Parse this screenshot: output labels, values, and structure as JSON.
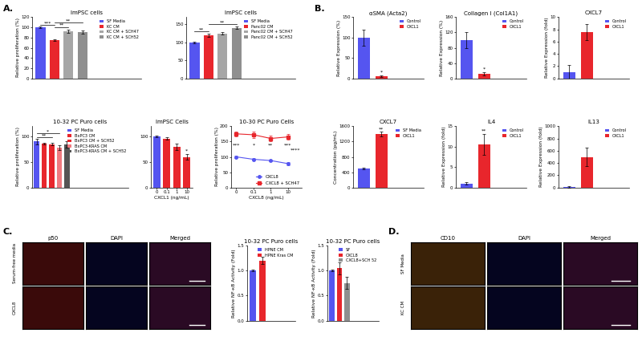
{
  "panel_labels": [
    "A.",
    "B.",
    "C.",
    "D."
  ],
  "chart_data": [
    {
      "type": "bar",
      "title": "ImPSC cells",
      "ylabel": "Relative proliferation (%)",
      "categories": [
        "SF Media",
        "KC CM",
        "KC CM + SCH47",
        "KC CM + SCH52"
      ],
      "values": [
        100,
        75,
        92,
        90
      ],
      "errors": [
        2,
        1,
        3,
        3
      ],
      "colors": [
        "#5555f0",
        "#e8262c",
        "#a6a6a6",
        "#8f8f8f"
      ],
      "ylim": [
        0,
        120
      ],
      "yticks": [
        0,
        20,
        40,
        60,
        80,
        100,
        120
      ],
      "legend": "upper right",
      "tick_labels": "y",
      "annotations": [
        {
          "text": "***",
          "x": 0,
          "x2": 1,
          "y": 104
        },
        {
          "text": "**",
          "x": 1,
          "x2": 2,
          "y": 100
        },
        {
          "text": "**",
          "x": 1,
          "x2": 3,
          "y": 109
        }
      ]
    },
    {
      "type": "bar",
      "title": "ImPSC cells",
      "categories": [
        "SF Media",
        "Panc02 CM",
        "Panc02 CM + SCH47",
        "Panc02 CM + SCH52"
      ],
      "values": [
        100,
        120,
        125,
        140
      ],
      "errors": [
        2,
        4,
        3,
        3
      ],
      "colors": [
        "#5555f0",
        "#e8262c",
        "#a6a6a6",
        "#8f8f8f"
      ],
      "ylim": [
        0,
        170
      ],
      "yticks": [
        0,
        50,
        100,
        150
      ],
      "legend": "upper right",
      "tick_labels": "y",
      "annotations": [
        {
          "text": "**",
          "x": 0,
          "x2": 1,
          "y": 130
        },
        {
          "text": "**",
          "x": 1,
          "x2": 3,
          "y": 150
        }
      ]
    },
    {
      "type": "bar",
      "title": "10-32 PC Puro cells",
      "ylabel": "Relative proliferation (%)",
      "categories": [
        "SF Media",
        "BxPC3 CM",
        "BxPC3 CM + SCH52",
        "BxPC3-KRAS CM",
        "BxPC3-KRAS CM + SCH52"
      ],
      "values": [
        90,
        86,
        85,
        78,
        84
      ],
      "errors": [
        5,
        2,
        2,
        4,
        6
      ],
      "colors": [
        "#5555f0",
        "#e8262c",
        "#e8262c",
        "#f07a80",
        "#555555"
      ],
      "ylim": [
        0,
        120
      ],
      "yticks": [
        0,
        50,
        100
      ],
      "legend": "upper right",
      "tick_labels": "y",
      "annotations": [
        {
          "text": "**",
          "x": 0,
          "x2": 2,
          "y": 98
        },
        {
          "text": "*",
          "x": 0,
          "x2": 3,
          "y": 106
        }
      ]
    },
    {
      "type": "bar",
      "title": "ImPSC Cells",
      "xlabel": "CXCL1 (ng/mL)",
      "categories": [
        "0",
        "0.1",
        "1",
        "10"
      ],
      "values": [
        100,
        96,
        80,
        60
      ],
      "errors": [
        2,
        2,
        6,
        5
      ],
      "colors": [
        "#5555f0",
        "#e8262c",
        "#e8262c",
        "#e8262c"
      ],
      "ylim": [
        0,
        120
      ],
      "yticks": [
        0,
        50,
        100
      ],
      "annotations": [
        {
          "text": "*",
          "x": 3,
          "y": 67
        }
      ]
    },
    {
      "type": "line",
      "title": "10-30 PC Puro Cells",
      "xlabel": "CXCL8 (ng/mL)",
      "ylabel": "Relative proliferation (%)",
      "categories": [
        "0",
        "0.1",
        "1",
        "10"
      ],
      "series": [
        {
          "name": "CXCL8",
          "color": "#5555f0",
          "marker": "o",
          "values": [
            100,
            92,
            88,
            78
          ],
          "errors": [
            3,
            3,
            3,
            5
          ]
        },
        {
          "name": "CXCL8 + SCH47",
          "color": "#e8262c",
          "marker": "s",
          "values": [
            175,
            172,
            160,
            165
          ],
          "errors": [
            8,
            10,
            8,
            10
          ]
        }
      ],
      "ylim": [
        0,
        200
      ],
      "yticks": [
        0,
        50,
        100,
        150,
        200
      ],
      "legend": "lower right",
      "annotations": [
        {
          "text": "***",
          "x": 0,
          "y": 130
        },
        {
          "text": "*",
          "x": 1,
          "y": 130
        },
        {
          "text": "**",
          "x": 2,
          "y": 130
        },
        {
          "text": "***",
          "x": 3,
          "y": 130
        },
        {
          "text": "****",
          "x": 3.45,
          "y": 115
        }
      ]
    },
    {
      "type": "bar",
      "title": "αSMA (Acta2)",
      "ylabel": "Relative Expression (%)",
      "categories": [
        "Control",
        "CXCL1"
      ],
      "values": [
        100,
        5
      ],
      "errors": [
        20,
        2
      ],
      "colors": [
        "#5555f0",
        "#e8262c"
      ],
      "ylim": [
        0,
        150
      ],
      "yticks": [
        0,
        50,
        100,
        150
      ],
      "legend": "upper right",
      "tick_labels": "y",
      "annotations": [
        {
          "text": "*",
          "x": 1,
          "y": 10
        }
      ]
    },
    {
      "type": "bar",
      "title": "Collagen I (Col1A1)",
      "ylabel": "Relative Expression (%)",
      "categories": [
        "Control",
        "CXCL1"
      ],
      "values": [
        100,
        12
      ],
      "errors": [
        20,
        4
      ],
      "colors": [
        "#5555f0",
        "#e8262c"
      ],
      "ylim": [
        0,
        160
      ],
      "yticks": [
        0,
        40,
        80,
        120,
        160
      ],
      "legend": "upper right",
      "tick_labels": "y",
      "annotations": [
        {
          "text": "*",
          "x": 1,
          "y": 20
        }
      ]
    },
    {
      "type": "bar",
      "title": "CXCL7",
      "ylabel": "Relative Expression (fold)",
      "categories": [
        "Control",
        "CXCL1"
      ],
      "values": [
        1,
        7.5
      ],
      "errors": [
        1.2,
        1.3
      ],
      "colors": [
        "#5555f0",
        "#e8262c"
      ],
      "ylim": [
        0,
        10
      ],
      "yticks": [
        0,
        2,
        4,
        6,
        8,
        10
      ],
      "legend": "upper right",
      "tick_labels": "y"
    },
    {
      "type": "bar",
      "title": "CXCL7",
      "ylabel": "Concentration (pg/mL)",
      "categories": [
        "SF Media",
        "CXCL1"
      ],
      "values": [
        500,
        1400
      ],
      "errors": [
        20,
        60
      ],
      "colors": [
        "#5555f0",
        "#e8262c"
      ],
      "ylim": [
        0,
        1600
      ],
      "yticks": [
        0,
        400,
        800,
        1200,
        1600
      ],
      "legend": "upper right",
      "tick_labels": "y",
      "annotations": [
        {
          "text": "**",
          "x": 1,
          "y": 1470
        }
      ]
    },
    {
      "type": "bar",
      "title": "IL4",
      "ylabel": "Relative Expression (fold)",
      "categories": [
        "Control",
        "CXCL1"
      ],
      "values": [
        1,
        10.5
      ],
      "errors": [
        0.3,
        2.5
      ],
      "colors": [
        "#5555f0",
        "#e8262c"
      ],
      "ylim": [
        0,
        15
      ],
      "yticks": [
        0,
        5,
        10,
        15
      ],
      "legend": "upper right",
      "tick_labels": "y",
      "annotations": [
        {
          "text": "**",
          "x": 1,
          "y": 13.3
        }
      ]
    },
    {
      "type": "bar",
      "title": "IL13",
      "ylabel": "Relative Expression (fold)",
      "categories": [
        "Control",
        "CXCL1"
      ],
      "values": [
        10,
        500
      ],
      "errors": [
        10,
        150
      ],
      "colors": [
        "#5555f0",
        "#e8262c"
      ],
      "ylim": [
        0,
        1000
      ],
      "yticks": [
        0,
        200,
        400,
        600,
        800,
        1000
      ],
      "legend": "upper right",
      "tick_labels": "y"
    },
    {
      "type": "bar",
      "title": "10-32 PC Puro cells",
      "ylabel": "Relative NF-κB Activity (Fold)",
      "categories": [
        "HPNE CM",
        "HPNE Kras CM"
      ],
      "values": [
        1.0,
        1.2
      ],
      "errors": [
        0.02,
        0.07
      ],
      "colors": [
        "#5555f0",
        "#e8262c"
      ],
      "ylim": [
        0,
        1.5
      ],
      "yticks": [
        {
          "value": 0,
          "label": "0.0"
        },
        0.5,
        {
          "value": 1,
          "label": "1.0"
        },
        1.5
      ],
      "legend": "upper right",
      "tick_labels": "y"
    },
    {
      "type": "bar",
      "title": "10-32 PC Puro cells",
      "ylabel": "Relative NF-κB Activity (Fold)",
      "categories": [
        "SF",
        "CXCL8",
        "CXCL8+SCH 52"
      ],
      "values": [
        1.0,
        1.05,
        0.75
      ],
      "errors": [
        0.02,
        0.12,
        0.12
      ],
      "colors": [
        "#5555f0",
        "#e8262c",
        "#8f8f8f"
      ],
      "ylim": [
        0,
        1.5
      ],
      "yticks": [
        {
          "value": 0,
          "label": "0.0"
        },
        0.5,
        {
          "value": 1,
          "label": "1.0"
        },
        1.5
      ],
      "legend": "upper right",
      "tick_labels": "y"
    }
  ],
  "image_grids": [
    {
      "columns": [
        "p50",
        "DAPI",
        "Merged"
      ],
      "rows": [
        "Serum-free media",
        "CXCL8"
      ]
    },
    {
      "columns": [
        "CD10",
        "DAPI",
        "Merged"
      ],
      "rows": [
        "SF Media",
        "KC CM"
      ]
    }
  ]
}
